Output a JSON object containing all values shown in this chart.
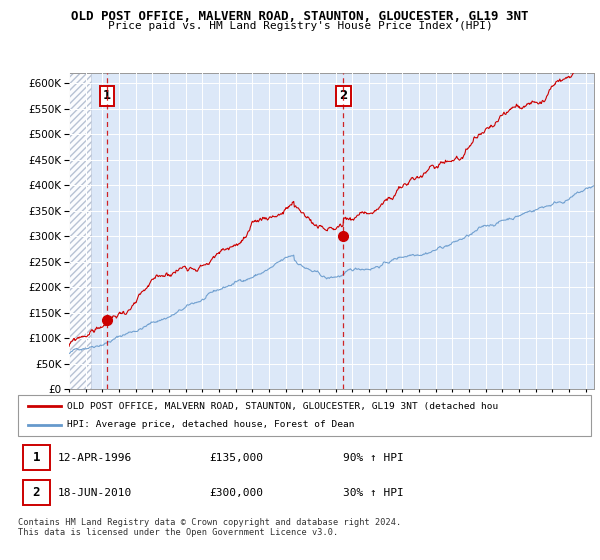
{
  "title": "OLD POST OFFICE, MALVERN ROAD, STAUNTON, GLOUCESTER, GL19 3NT",
  "subtitle": "Price paid vs. HM Land Registry's House Price Index (HPI)",
  "ylim": [
    0,
    620000
  ],
  "yticks": [
    0,
    50000,
    100000,
    150000,
    200000,
    250000,
    300000,
    350000,
    400000,
    450000,
    500000,
    550000,
    600000
  ],
  "x_start_year": 1994,
  "x_end_year": 2025,
  "sale1_year": 1996.28,
  "sale1_price": 135000,
  "sale2_year": 2010.46,
  "sale2_price": 300000,
  "legend_line1": "OLD POST OFFICE, MALVERN ROAD, STAUNTON, GLOUCESTER, GL19 3NT (detached hou",
  "legend_line2": "HPI: Average price, detached house, Forest of Dean",
  "footnote": "Contains HM Land Registry data © Crown copyright and database right 2024.\nThis data is licensed under the Open Government Licence v3.0.",
  "hpi_color": "#6699cc",
  "price_color": "#cc0000",
  "bg_color": "#dce8f8",
  "label1_date": "12-APR-1996",
  "label1_price": "£135,000",
  "label1_hpi": "90% ↑ HPI",
  "label2_date": "18-JUN-2010",
  "label2_price": "£300,000",
  "label2_hpi": "30% ↑ HPI"
}
